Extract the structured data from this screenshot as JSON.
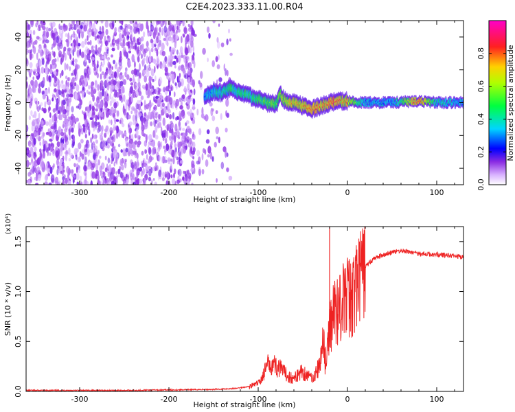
{
  "title": "C2E4.2023.333.11.00.R04",
  "chart_data": [
    {
      "type": "heatmap",
      "xlabel": "Height of straight line (km)",
      "ylabel": "Frequency (Hz)",
      "xlim": [
        -360,
        130
      ],
      "ylim": [
        -50,
        50
      ],
      "xticks": [
        -300,
        -200,
        -100,
        0,
        100
      ],
      "yticks": [
        -40,
        -20,
        0,
        20,
        40
      ],
      "colorbar": {
        "label": "Normalized spectral amplitude",
        "range": [
          0,
          1
        ],
        "ticks": [
          "0.0",
          "0.2",
          "0.4",
          "0.6",
          "0.8"
        ],
        "tick_values": [
          0,
          0.2,
          0.4,
          0.6,
          0.8
        ],
        "colors": [
          "#ffffff",
          "#6a00ff",
          "#0000ff",
          "#00e0ff",
          "#00ff00",
          "#ffff00",
          "#ff0000",
          "#ff00ff"
        ]
      },
      "noise_region": [
        -360,
        -130
      ],
      "ridge": {
        "x": [
          -160,
          -150,
          -140,
          -130,
          -120,
          -110,
          -100,
          -90,
          -80,
          -75,
          -70,
          -60,
          -50,
          -40,
          -30,
          -20,
          -10,
          0,
          20,
          50,
          80,
          100,
          130
        ],
        "y": [
          3,
          7,
          6,
          9,
          6,
          4,
          2,
          0,
          -1,
          5,
          1,
          0,
          -2,
          -4,
          -2,
          0,
          1,
          1,
          0,
          0,
          1,
          0,
          0
        ],
        "amp": [
          0.25,
          0.35,
          0.4,
          0.45,
          0.45,
          0.45,
          0.5,
          0.55,
          0.55,
          0.6,
          0.65,
          0.75,
          0.75,
          0.8,
          0.8,
          0.85,
          0.85,
          0.75,
          0.3,
          0.3,
          0.85,
          0.4,
          0.3
        ]
      }
    },
    {
      "type": "line",
      "xlabel": "Height of straight line (km)",
      "ylabel": "SNR (10 * v/v)",
      "y_multiplier": "(x10⁴)",
      "xlim": [
        -360,
        130
      ],
      "ylim": [
        0,
        1.65
      ],
      "xticks": [
        -300,
        -200,
        -100,
        0,
        100
      ],
      "yticks": [
        "0.0",
        "0.5",
        "1.0",
        "1.5"
      ],
      "ytick_values": [
        0,
        0.5,
        1.0,
        1.5
      ],
      "series": [
        {
          "color": "#ee2222",
          "x": [
            -360,
            -300,
            -250,
            -200,
            -150,
            -125,
            -110,
            -100,
            -95,
            -90,
            -85,
            -80,
            -75,
            -70,
            -65,
            -60,
            -55,
            -50,
            -45,
            -40,
            -35,
            -30,
            -27,
            -25,
            -22,
            -20,
            -15,
            -10,
            -5,
            0,
            5,
            10,
            20,
            30,
            40,
            50,
            60,
            80,
            100,
            115,
            130
          ],
          "y": [
            0.01,
            0.01,
            0.01,
            0.015,
            0.02,
            0.03,
            0.05,
            0.08,
            0.15,
            0.25,
            0.3,
            0.25,
            0.22,
            0.18,
            0.15,
            0.12,
            0.18,
            0.2,
            0.16,
            0.14,
            0.18,
            0.3,
            0.6,
            0.3,
            0.4,
            0.65,
            0.8,
            0.85,
            0.9,
            0.95,
            0.95,
            1.05,
            1.25,
            1.33,
            1.37,
            1.39,
            1.41,
            1.38,
            1.37,
            1.36,
            1.34
          ]
        }
      ]
    }
  ]
}
